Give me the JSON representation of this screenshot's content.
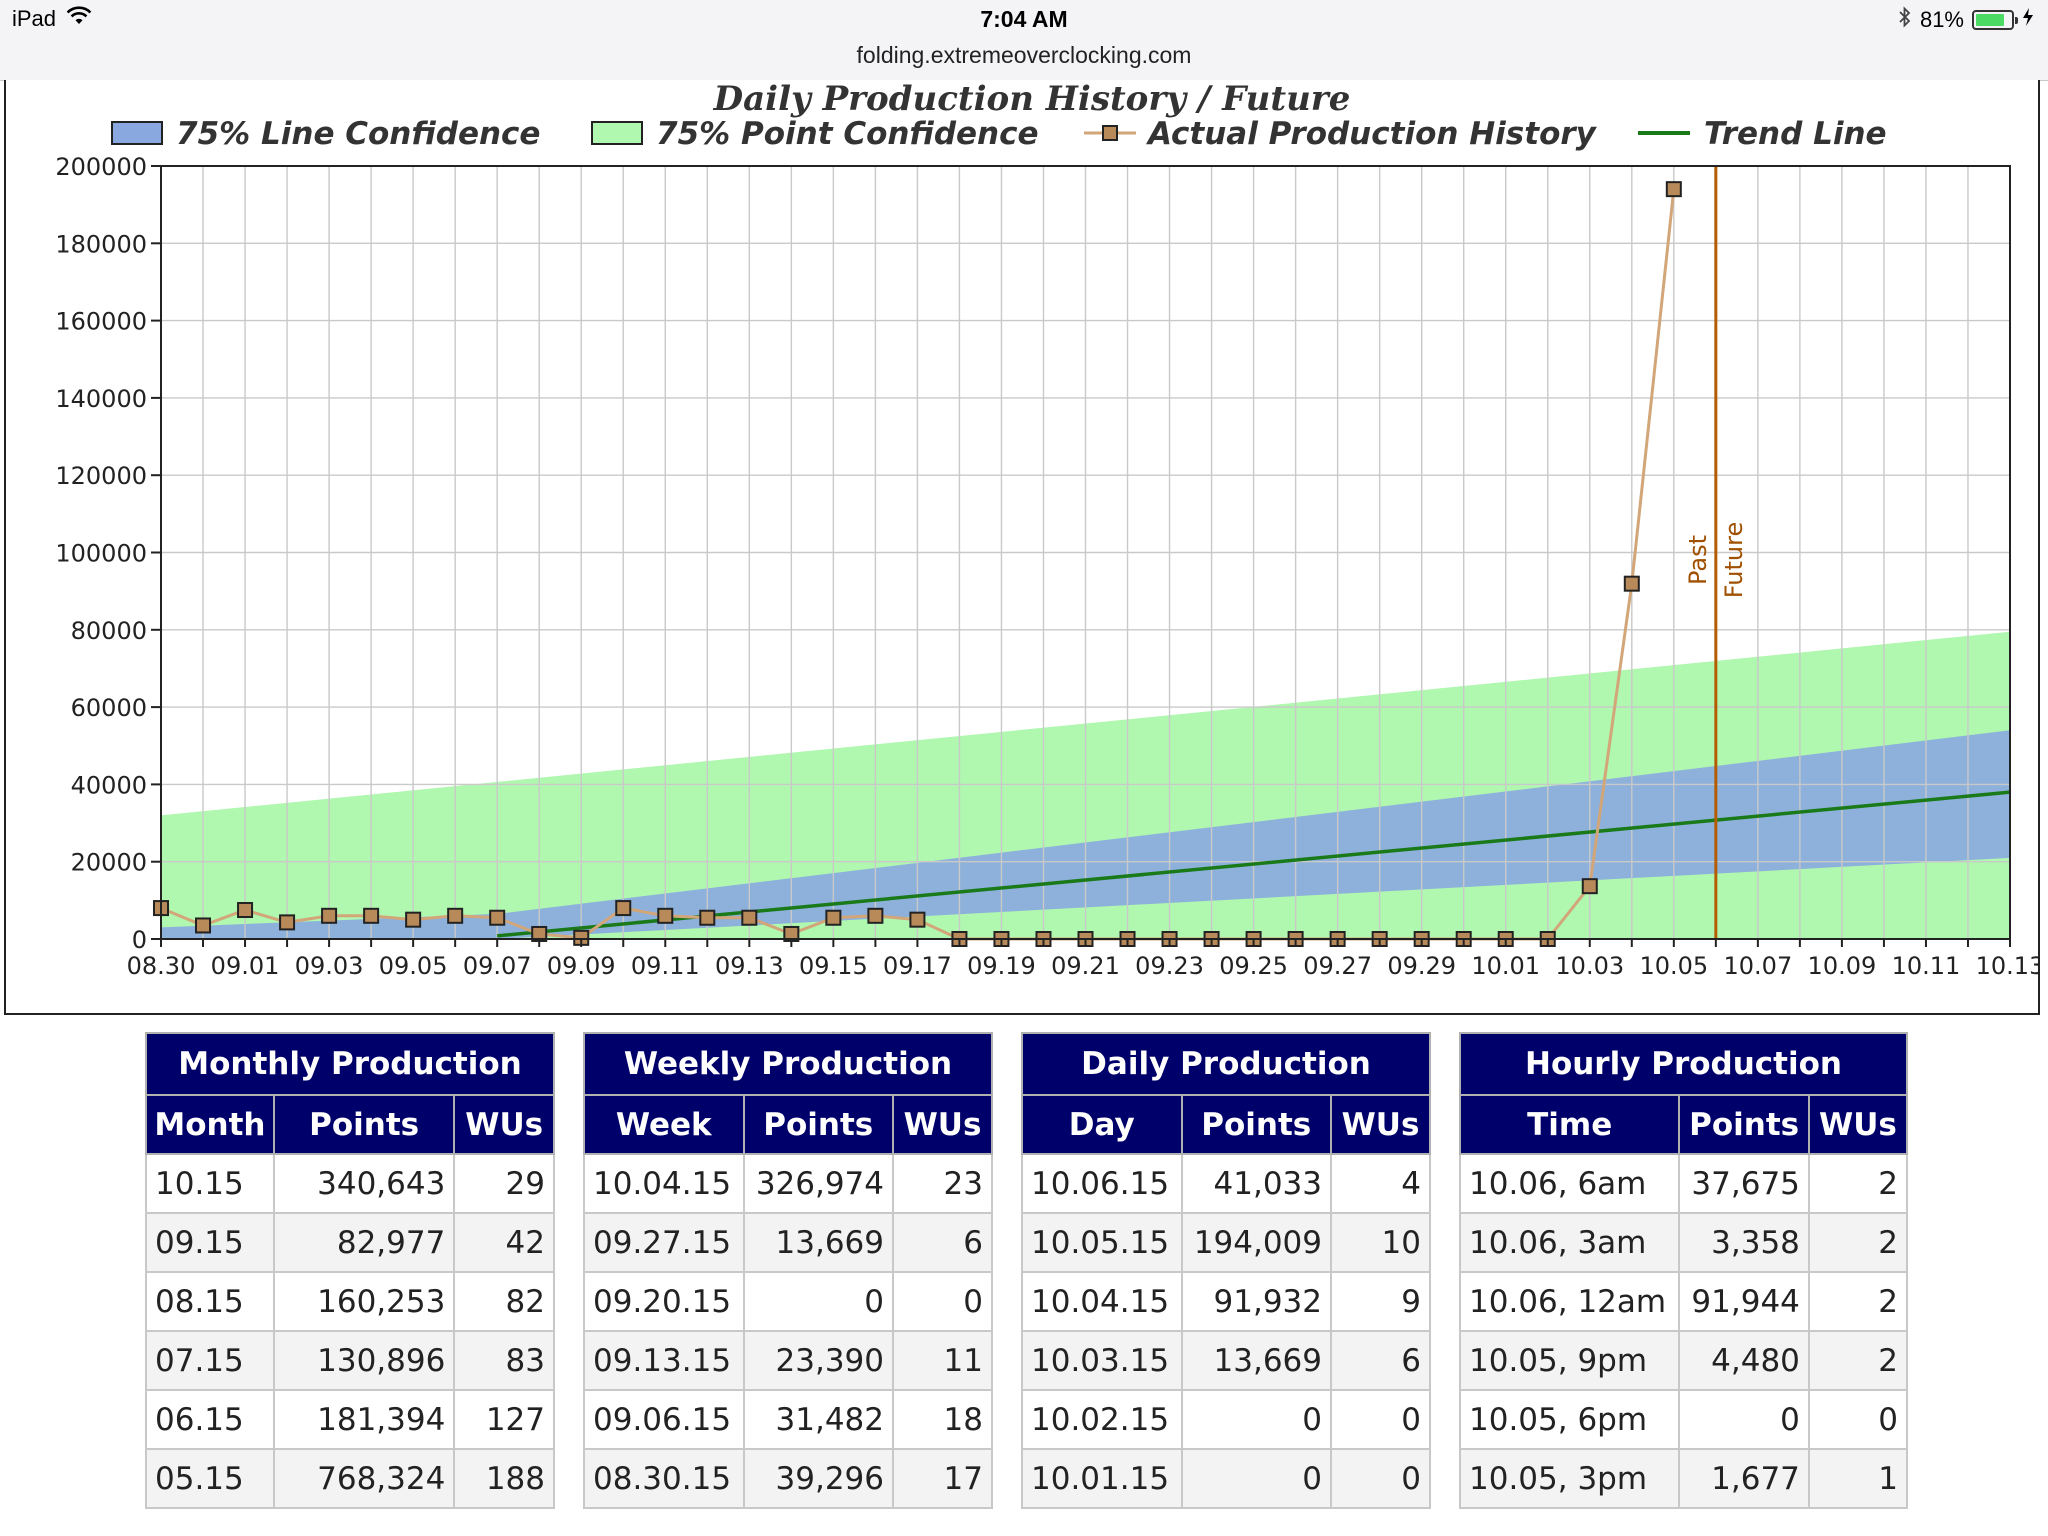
{
  "status_bar": {
    "device": "iPad",
    "time": "7:04 AM",
    "url": "folding.extremeoverclocking.com",
    "battery_percent_text": "81%",
    "battery_level": 0.81,
    "icons": [
      "wifi-icon",
      "bluetooth-icon",
      "battery-icon",
      "charging-icon"
    ]
  },
  "chart_data": {
    "type": "line",
    "title": "Daily Production History / Future",
    "legend": [
      "75% Line Confidence",
      "75% Point Confidence",
      "Actual Production History",
      "Trend Line"
    ],
    "legend_placement": "top",
    "ylim": [
      0,
      200000
    ],
    "y_ticks": [
      "200000",
      "180000",
      "160000",
      "140000",
      "120000",
      "100000",
      "80000",
      "60000",
      "40000",
      "20000",
      "0"
    ],
    "x_tick_labels": [
      "08.30",
      "09.01",
      "09.03",
      "09.05",
      "09.07",
      "09.09",
      "09.11",
      "09.13",
      "09.15",
      "09.17",
      "09.19",
      "09.21",
      "09.23",
      "09.25",
      "09.27",
      "09.29",
      "10.01",
      "10.03",
      "10.05",
      "10.07",
      "10.09",
      "10.11",
      "10.13"
    ],
    "x_days_span": 44,
    "grid": true,
    "series": [
      {
        "name": "Actual Production History",
        "color": "#d2a679",
        "x": [
          "08.30",
          "08.31",
          "09.01",
          "09.02",
          "09.03",
          "09.04",
          "09.05",
          "09.06",
          "09.07",
          "09.08",
          "09.09",
          "09.10",
          "09.11",
          "09.12",
          "09.13",
          "09.14",
          "09.15",
          "09.16",
          "09.17",
          "09.18",
          "09.19",
          "09.20",
          "09.21",
          "09.22",
          "09.23",
          "09.24",
          "09.25",
          "09.26",
          "09.27",
          "09.28",
          "09.29",
          "09.30",
          "10.01",
          "10.02",
          "10.03",
          "10.04",
          "10.05"
        ],
        "values": [
          8000,
          3500,
          7500,
          4300,
          6000,
          6000,
          5000,
          6000,
          5500,
          1300,
          300,
          8000,
          6000,
          5500,
          5500,
          1300,
          5500,
          6000,
          5000,
          0,
          0,
          0,
          0,
          0,
          0,
          0,
          0,
          0,
          0,
          0,
          0,
          0,
          0,
          0,
          13669,
          91932,
          194009
        ]
      },
      {
        "name": "Trend Line",
        "color": "#1a7a1a",
        "x": [
          "09.07",
          "10.13"
        ],
        "values": [
          800,
          38000
        ]
      },
      {
        "name": "75% Line Confidence",
        "color": "#8aa8e0",
        "x": [
          "08.30",
          "09.07",
          "10.13"
        ],
        "upper": [
          3000,
          6500,
          54000
        ],
        "lower": [
          0,
          0,
          21000
        ]
      },
      {
        "name": "75% Point Confidence",
        "color": "#b0f7b0",
        "x": [
          "08.30",
          "10.13"
        ],
        "upper": [
          32000,
          79500
        ],
        "lower": [
          0,
          0
        ]
      }
    ],
    "divider": {
      "x": "10.06",
      "labels": [
        "Past",
        "Future"
      ],
      "color": "#b35c00"
    }
  },
  "tables": {
    "monthly": {
      "title": "Monthly Production",
      "headers": [
        "Month",
        "Points",
        "WUs"
      ],
      "rows": [
        [
          "10.15",
          "340,643",
          "29"
        ],
        [
          "09.15",
          "82,977",
          "42"
        ],
        [
          "08.15",
          "160,253",
          "82"
        ],
        [
          "07.15",
          "130,896",
          "83"
        ],
        [
          "06.15",
          "181,394",
          "127"
        ],
        [
          "05.15",
          "768,324",
          "188"
        ]
      ]
    },
    "weekly": {
      "title": "Weekly Production",
      "headers": [
        "Week",
        "Points",
        "WUs"
      ],
      "rows": [
        [
          "10.04.15",
          "326,974",
          "23"
        ],
        [
          "09.27.15",
          "13,669",
          "6"
        ],
        [
          "09.20.15",
          "0",
          "0"
        ],
        [
          "09.13.15",
          "23,390",
          "11"
        ],
        [
          "09.06.15",
          "31,482",
          "18"
        ],
        [
          "08.30.15",
          "39,296",
          "17"
        ]
      ]
    },
    "daily": {
      "title": "Daily Production",
      "headers": [
        "Day",
        "Points",
        "WUs"
      ],
      "rows": [
        [
          "10.06.15",
          "41,033",
          "4"
        ],
        [
          "10.05.15",
          "194,009",
          "10"
        ],
        [
          "10.04.15",
          "91,932",
          "9"
        ],
        [
          "10.03.15",
          "13,669",
          "6"
        ],
        [
          "10.02.15",
          "0",
          "0"
        ],
        [
          "10.01.15",
          "0",
          "0"
        ]
      ]
    },
    "hourly": {
      "title": "Hourly Production",
      "headers": [
        "Time",
        "Points",
        "WUs"
      ],
      "rows": [
        [
          "10.06, 6am",
          "37,675",
          "2"
        ],
        [
          "10.06, 3am",
          "3,358",
          "2"
        ],
        [
          "10.06, 12am",
          "91,944",
          "2"
        ],
        [
          "10.05, 9pm",
          "4,480",
          "2"
        ],
        [
          "10.05, 6pm",
          "0",
          "0"
        ],
        [
          "10.05, 3pm",
          "1,677",
          "1"
        ]
      ]
    }
  }
}
